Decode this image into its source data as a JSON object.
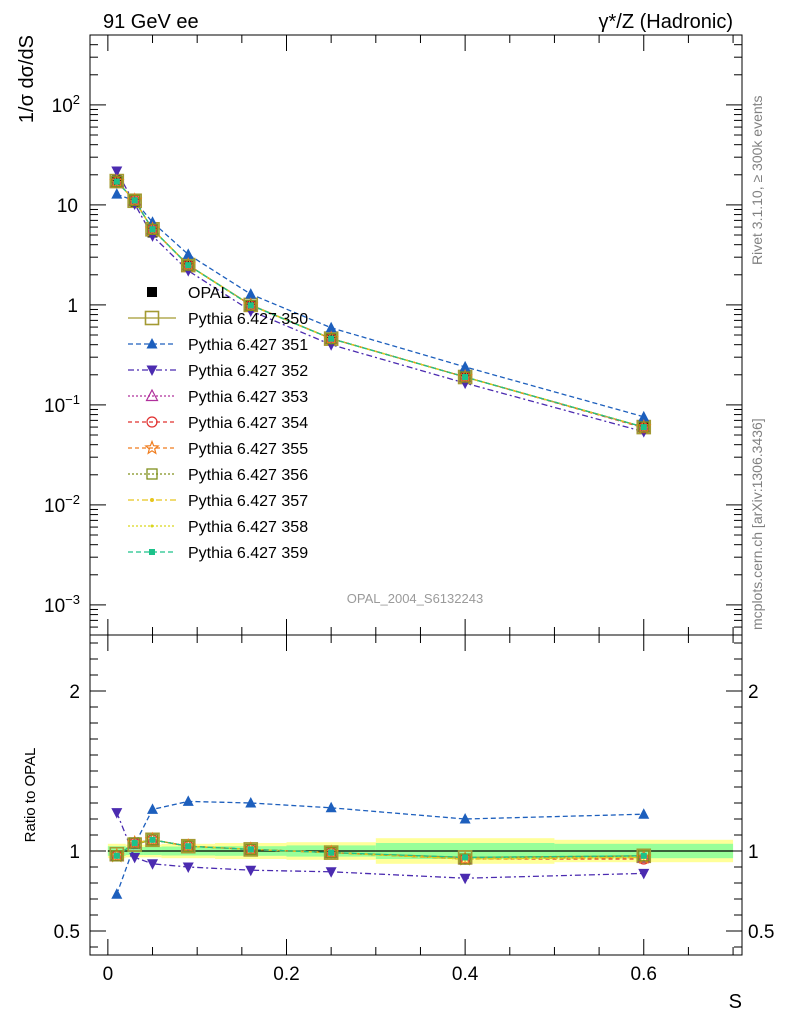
{
  "header": {
    "left": "91 GeV ee",
    "right": "γ*/Z (Hadronic)"
  },
  "side_text": {
    "rivet": "Rivet 3.1.10, ≥ 300k events",
    "mcplots": "mcplots.cern.ch [arXiv:1306.3436]"
  },
  "chart_data": [
    {
      "type": "line",
      "panel": "main",
      "title": "OPAL_2004_S6132243",
      "ylabel": "1/σ dσ/dS",
      "xlabel": "S",
      "yscale": "log",
      "xlim": [
        -0.02,
        0.71
      ],
      "ylim": [
        0.0005,
        500
      ],
      "x_ticks": [
        "0",
        "0.2",
        "0.4",
        "0.6"
      ],
      "y_ticks": [
        {
          "value": 0.001,
          "base": "10",
          "exp": "−3"
        },
        {
          "value": 0.01,
          "base": "10",
          "exp": "−2"
        },
        {
          "value": 0.1,
          "base": "10",
          "exp": "−1"
        },
        {
          "value": 1,
          "base": "1",
          "exp": ""
        },
        {
          "value": 10,
          "base": "10",
          "exp": ""
        },
        {
          "value": 100,
          "base": "10",
          "exp": "2"
        }
      ],
      "x": [
        0.01,
        0.03,
        0.05,
        0.09,
        0.16,
        0.25,
        0.4,
        0.6
      ],
      "reference": {
        "name": "OPAL",
        "values": [
          17.5,
          10.6,
          5.3,
          2.45,
          0.98,
          0.46,
          0.2,
          0.062
        ]
      },
      "series": [
        {
          "name": "Pythia 6.427 350",
          "color": "#a39a32",
          "dash": "",
          "marker": "square-open-big",
          "values": [
            17.3,
            11.0,
            5.7,
            2.5,
            1.0,
            0.46,
            0.19,
            0.06
          ]
        },
        {
          "name": "Pythia 6.427 351",
          "color": "#1d5fbd",
          "dash": "5,3",
          "marker": "triangle-up",
          "values": [
            12.8,
            11.0,
            6.7,
            3.2,
            1.28,
            0.59,
            0.24,
            0.076
          ]
        },
        {
          "name": "Pythia 6.427 352",
          "color": "#4b2bb0",
          "dash": "6,3,2,3",
          "marker": "triangle-down",
          "values": [
            21.8,
            10.2,
            4.9,
            2.2,
            0.87,
            0.4,
            0.165,
            0.054
          ]
        },
        {
          "name": "Pythia 6.427 353",
          "color": "#b0309c",
          "dash": "2,2",
          "marker": "triangle-open",
          "values": [
            17.0,
            11.1,
            5.7,
            2.5,
            0.99,
            0.46,
            0.19,
            0.06
          ]
        },
        {
          "name": "Pythia 6.427 354",
          "color": "#e0302f",
          "dash": "4,3",
          "marker": "circle-open",
          "values": [
            17.0,
            11.1,
            5.7,
            2.5,
            0.99,
            0.46,
            0.19,
            0.059
          ]
        },
        {
          "name": "Pythia 6.427 355",
          "color": "#f07c1d",
          "dash": "4,3",
          "marker": "star-open",
          "values": [
            17.1,
            11.1,
            5.7,
            2.5,
            0.99,
            0.46,
            0.19,
            0.06
          ]
        },
        {
          "name": "Pythia 6.427 356",
          "color": "#80901c",
          "dash": "2,2",
          "marker": "square-open",
          "values": [
            17.1,
            11.1,
            5.7,
            2.5,
            0.99,
            0.46,
            0.19,
            0.06
          ]
        },
        {
          "name": "Pythia 6.427 357",
          "color": "#e6c51d",
          "dash": "6,3,2,3",
          "marker": "dot",
          "values": [
            17.1,
            11.1,
            5.7,
            2.5,
            0.99,
            0.46,
            0.19,
            0.06
          ]
        },
        {
          "name": "Pythia 6.427 358",
          "color": "#d9d61c",
          "dash": "2,2",
          "marker": "dot-small",
          "values": [
            17.1,
            11.1,
            5.7,
            2.5,
            0.99,
            0.46,
            0.19,
            0.06
          ]
        },
        {
          "name": "Pythia 6.427 359",
          "color": "#1cc28a",
          "dash": "5,3",
          "marker": "square-small",
          "values": [
            17.1,
            11.1,
            5.7,
            2.5,
            0.99,
            0.46,
            0.19,
            0.06
          ]
        }
      ]
    },
    {
      "type": "line",
      "panel": "ratio",
      "ylabel": "Ratio to OPAL",
      "xlabel": "S",
      "xlim": [
        -0.02,
        0.71
      ],
      "ylim": [
        0.35,
        2.35
      ],
      "y_ticks": [
        "0.5",
        "1",
        "2"
      ],
      "bands": [
        {
          "x0": 0.0,
          "x1": 0.02,
          "yellow": [
            0.955,
            1.045
          ],
          "green": [
            0.97,
            1.03
          ]
        },
        {
          "x0": 0.02,
          "x1": 0.04,
          "yellow": [
            0.96,
            1.04
          ],
          "green": [
            0.975,
            1.025
          ]
        },
        {
          "x0": 0.04,
          "x1": 0.06,
          "yellow": [
            0.96,
            1.04
          ],
          "green": [
            0.975,
            1.025
          ]
        },
        {
          "x0": 0.06,
          "x1": 0.12,
          "yellow": [
            0.955,
            1.045
          ],
          "green": [
            0.972,
            1.028
          ]
        },
        {
          "x0": 0.12,
          "x1": 0.2,
          "yellow": [
            0.95,
            1.05
          ],
          "green": [
            0.97,
            1.03
          ]
        },
        {
          "x0": 0.2,
          "x1": 0.3,
          "yellow": [
            0.945,
            1.055
          ],
          "green": [
            0.965,
            1.035
          ]
        },
        {
          "x0": 0.3,
          "x1": 0.5,
          "yellow": [
            0.92,
            1.08
          ],
          "green": [
            0.95,
            1.05
          ]
        },
        {
          "x0": 0.5,
          "x1": 0.7,
          "yellow": [
            0.93,
            1.07
          ],
          "green": [
            0.955,
            1.045
          ]
        }
      ],
      "x": [
        0.01,
        0.03,
        0.05,
        0.09,
        0.16,
        0.25,
        0.4,
        0.6
      ],
      "series": [
        {
          "name": "Pythia 6.427 350",
          "values": [
            0.98,
            1.04,
            1.07,
            1.03,
            1.01,
            0.99,
            0.96,
            0.97
          ]
        },
        {
          "name": "Pythia 6.427 351",
          "values": [
            0.73,
            1.04,
            1.26,
            1.31,
            1.3,
            1.27,
            1.2,
            1.23
          ]
        },
        {
          "name": "Pythia 6.427 352",
          "values": [
            1.24,
            0.96,
            0.92,
            0.9,
            0.88,
            0.87,
            0.83,
            0.86
          ]
        },
        {
          "name": "Pythia 6.427 353",
          "values": [
            0.97,
            1.05,
            1.07,
            1.03,
            1.01,
            0.99,
            0.95,
            0.96
          ]
        },
        {
          "name": "Pythia 6.427 354",
          "values": [
            0.97,
            1.05,
            1.07,
            1.03,
            1.01,
            0.99,
            0.95,
            0.95
          ]
        },
        {
          "name": "Pythia 6.427 355",
          "values": [
            0.97,
            1.05,
            1.07,
            1.03,
            1.01,
            0.99,
            0.95,
            0.96
          ]
        },
        {
          "name": "Pythia 6.427 356",
          "values": [
            0.97,
            1.05,
            1.07,
            1.03,
            1.01,
            0.99,
            0.95,
            0.97
          ]
        },
        {
          "name": "Pythia 6.427 357",
          "values": [
            0.97,
            1.05,
            1.07,
            1.03,
            1.01,
            0.99,
            0.95,
            0.96
          ]
        },
        {
          "name": "Pythia 6.427 358",
          "values": [
            0.97,
            1.05,
            1.07,
            1.03,
            1.01,
            0.99,
            0.95,
            0.96
          ]
        },
        {
          "name": "Pythia 6.427 359",
          "values": [
            0.97,
            1.05,
            1.07,
            1.03,
            1.01,
            0.99,
            0.96,
            0.97
          ]
        }
      ]
    }
  ]
}
